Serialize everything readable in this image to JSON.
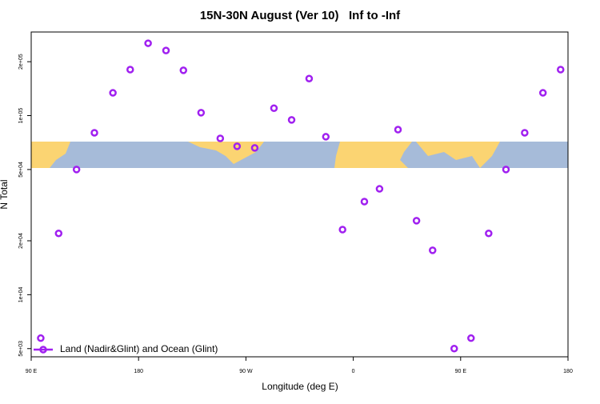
{
  "chart_data": {
    "type": "scatter",
    "title": "15N-30N August (Ver 10)   Inf to -Inf",
    "x_label": "Longitude (deg E)",
    "y_label": "N Total",
    "log_y": true,
    "legend": "bottom-left",
    "xlim": [
      90,
      540
    ],
    "xticks": [
      {
        "value": 90,
        "label": "90 E"
      },
      {
        "value": 180,
        "label": "180"
      },
      {
        "value": 270,
        "label": "90 W"
      },
      {
        "value": 360,
        "label": "0"
      },
      {
        "value": 450,
        "label": "90 E"
      },
      {
        "value": 540,
        "label": "180"
      }
    ],
    "ylim": [
      4500,
      293000
    ],
    "yticks": [
      {
        "value": 5000,
        "label": "5e+03"
      },
      {
        "value": 10000,
        "label": "1e+04"
      },
      {
        "value": 20000,
        "label": "2e+04"
      },
      {
        "value": 50000,
        "label": "5e+04"
      },
      {
        "value": 100000,
        "label": "1e+05"
      },
      {
        "value": 200000,
        "label": "2e+05"
      }
    ],
    "series": [
      {
        "name": "Land (Nadir&Glint) and Ocean (Glint)",
        "color": "#a020f0",
        "x": [
          98,
          113,
          128,
          143,
          158.5,
          173,
          188,
          203,
          217.6,
          232.4,
          248.5,
          262.6,
          277.4,
          293.5,
          308.3,
          323,
          337,
          351,
          369.3,
          382,
          397.5,
          413,
          426.5,
          444.6,
          458.7,
          473.5,
          488,
          503.7,
          519,
          533.8
        ],
        "values": [
          5720,
          22000,
          50000,
          80200,
          134000,
          180700,
          253500,
          231000,
          179000,
          103800,
          74600,
          67400,
          66000,
          110000,
          94600,
          161000,
          76200,
          23100,
          33100,
          39000,
          83500,
          25900,
          17700,
          5000,
          5720,
          22000,
          50000,
          80200,
          134000,
          180700
        ]
      }
    ]
  }
}
